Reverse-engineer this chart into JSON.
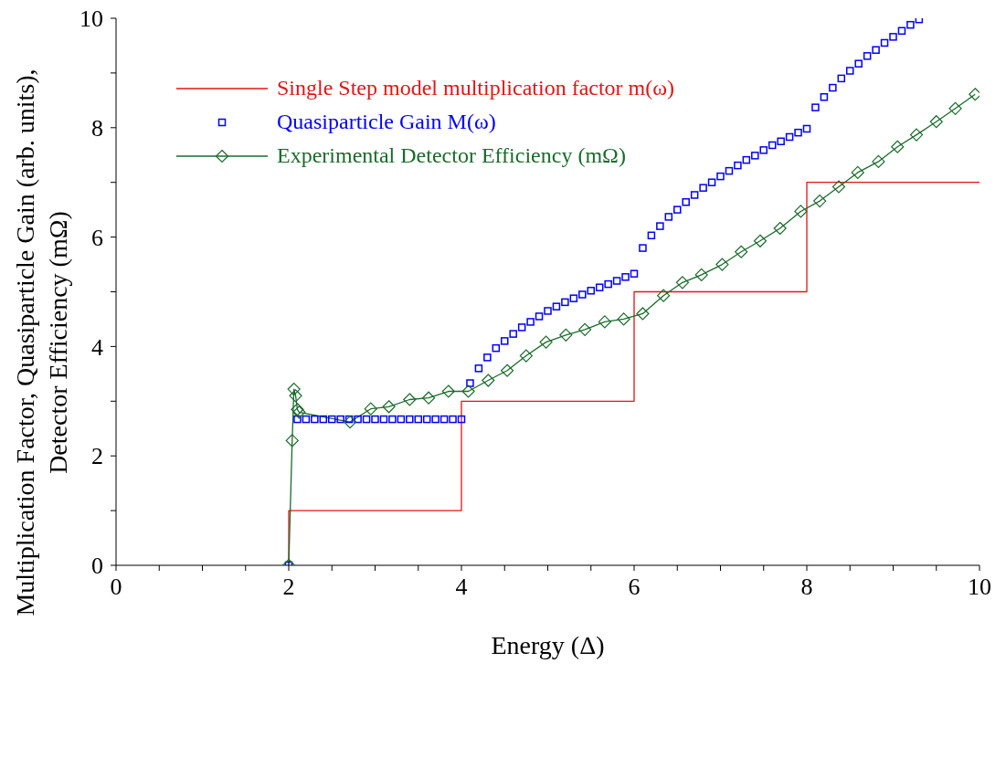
{
  "chart_data": {
    "type": "line",
    "xlabel": "Energy (Δ)",
    "ylabel": "Multiplication Factor, Quasiparticle Gain (arb. units), Detector Efficiency (mΩ)",
    "xlim": [
      0,
      10
    ],
    "ylim": [
      0,
      10
    ],
    "xticks": [
      0,
      {
        "value": 0.5,
        "label": null
      },
      {
        "value": 1,
        "label": null
      },
      {
        "value": 1.5,
        "label": null
      },
      2,
      {
        "value": 2.5,
        "label": null
      },
      {
        "value": 3,
        "label": null
      },
      {
        "value": 3.5,
        "label": null
      },
      4,
      {
        "value": 4.5,
        "label": null
      },
      {
        "value": 5,
        "label": null
      },
      {
        "value": 5.5,
        "label": null
      },
      6,
      {
        "value": 6.5,
        "label": null
      },
      {
        "value": 7,
        "label": null
      },
      {
        "value": 7.5,
        "label": null
      },
      8,
      {
        "value": 8.5,
        "label": null
      },
      {
        "value": 9,
        "label": null
      },
      {
        "value": 9.5,
        "label": null
      },
      10
    ],
    "yticks": [
      0,
      {
        "value": 1,
        "label": null
      },
      2,
      {
        "value": 3,
        "label": null
      },
      4,
      {
        "value": 5,
        "label": null
      },
      6,
      {
        "value": 7,
        "label": null
      },
      8,
      {
        "value": 9,
        "label": null
      },
      10
    ],
    "legend": "top left",
    "series": [
      {
        "name": "Single Step model multiplication factor m(ω)",
        "color": "#e31414",
        "marker": "none",
        "x": [
          2,
          2,
          4,
          4,
          6,
          6,
          8,
          8,
          10
        ],
        "values": [
          0,
          1,
          1,
          3,
          3,
          5,
          5,
          7,
          7
        ]
      },
      {
        "name": "Quasiparticle Gain M(ω)",
        "type": "scatter",
        "color": "#0000ff",
        "marker": "square",
        "x": [
          2,
          2.1,
          2.2,
          2.3,
          2.4,
          2.5,
          2.6,
          2.7,
          2.8,
          2.9,
          3.0,
          3.1,
          3.2,
          3.3,
          3.4,
          3.5,
          3.6,
          3.7,
          3.8,
          3.9,
          4.0,
          4.1,
          4.2,
          4.3,
          4.4,
          4.5,
          4.6,
          4.7,
          4.8,
          4.9,
          5.0,
          5.1,
          5.2,
          5.3,
          5.4,
          5.5,
          5.6,
          5.7,
          5.8,
          5.9,
          6.0,
          6.1,
          6.2,
          6.3,
          6.4,
          6.5,
          6.6,
          6.7,
          6.8,
          6.9,
          7.0,
          7.1,
          7.2,
          7.3,
          7.4,
          7.5,
          7.6,
          7.7,
          7.8,
          7.9,
          8.0,
          8.1,
          8.2,
          8.3,
          8.4,
          8.5,
          8.6,
          8.7,
          8.8,
          8.9,
          9.0,
          9.1,
          9.2,
          9.3
        ],
        "values": [
          0,
          2.67,
          2.67,
          2.67,
          2.67,
          2.67,
          2.67,
          2.67,
          2.67,
          2.67,
          2.67,
          2.67,
          2.67,
          2.67,
          2.67,
          2.67,
          2.67,
          2.67,
          2.67,
          2.67,
          2.67,
          3.33,
          3.6,
          3.8,
          3.97,
          4.1,
          4.23,
          4.35,
          4.45,
          4.55,
          4.65,
          4.73,
          4.81,
          4.88,
          4.95,
          5.02,
          5.08,
          5.14,
          5.2,
          5.27,
          5.33,
          5.8,
          6.03,
          6.2,
          6.37,
          6.5,
          6.64,
          6.77,
          6.9,
          7.0,
          7.11,
          7.21,
          7.31,
          7.41,
          7.49,
          7.59,
          7.68,
          7.75,
          7.83,
          7.91,
          7.98,
          8.37,
          8.56,
          8.73,
          8.9,
          9.04,
          9.17,
          9.31,
          9.42,
          9.55,
          9.66,
          9.77,
          9.88,
          9.98
        ]
      },
      {
        "name": "Experimental Detector Efficiency (mΩ)",
        "color": "#1b6b2c",
        "marker": "diamond",
        "x": [
          2.0,
          2.04,
          2.06,
          2.08,
          2.1,
          2.12,
          2.71,
          2.95,
          3.16,
          3.4,
          3.62,
          3.85,
          4.08,
          4.31,
          4.53,
          4.75,
          4.98,
          5.21,
          5.43,
          5.66,
          5.88,
          6.1,
          6.34,
          6.56,
          6.78,
          7.02,
          7.24,
          7.46,
          7.69,
          7.93,
          8.15,
          8.37,
          8.59,
          8.83,
          9.05,
          9.27,
          9.5,
          9.72,
          9.95
        ],
        "values": [
          0,
          2.28,
          3.22,
          3.1,
          2.85,
          2.8,
          2.62,
          2.86,
          2.9,
          3.03,
          3.06,
          3.18,
          3.18,
          3.38,
          3.56,
          3.83,
          4.08,
          4.21,
          4.31,
          4.45,
          4.5,
          4.6,
          4.93,
          5.17,
          5.31,
          5.5,
          5.73,
          5.93,
          6.16,
          6.47,
          6.66,
          6.92,
          7.18,
          7.38,
          7.65,
          7.87,
          8.11,
          8.35,
          8.61
        ]
      }
    ]
  }
}
